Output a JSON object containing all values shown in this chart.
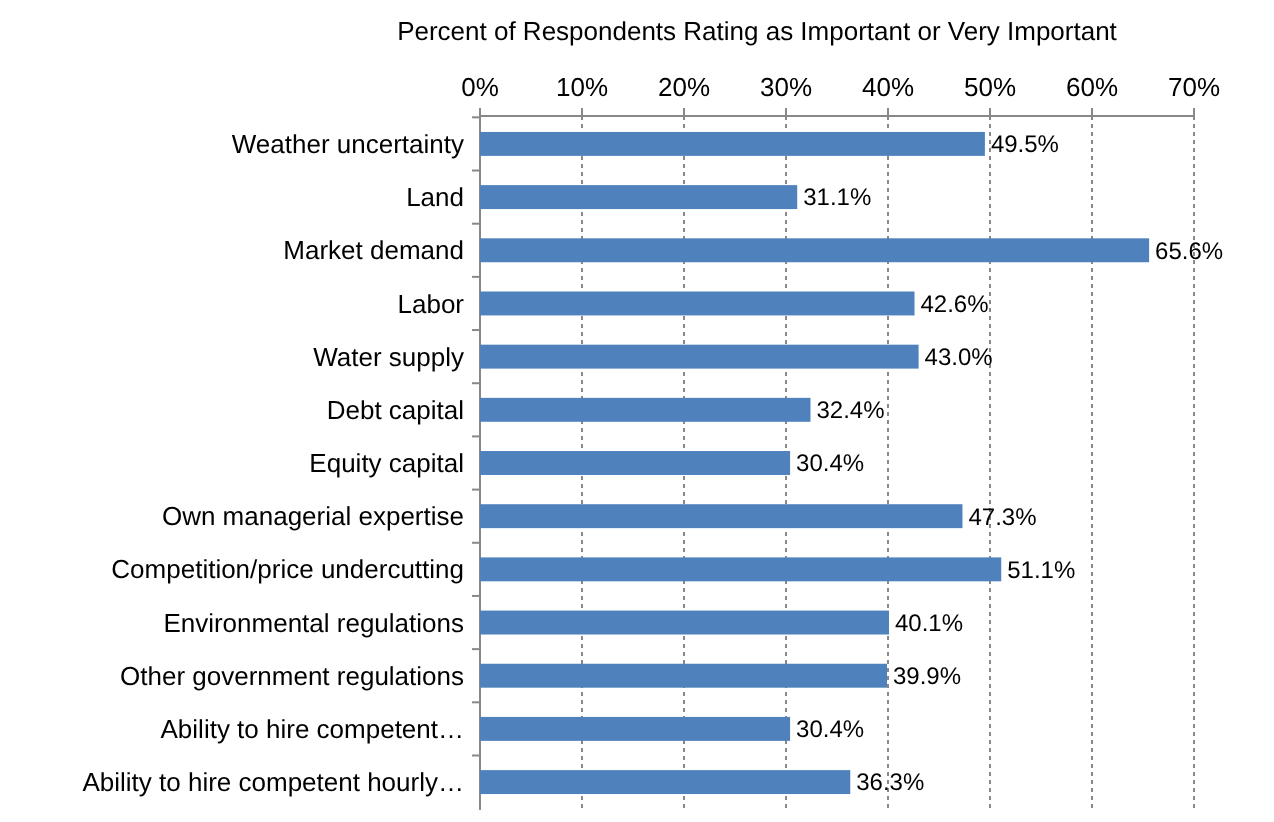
{
  "chart_data": {
    "type": "bar",
    "orientation": "horizontal",
    "title": "Percent of Respondents Rating as Important or Very Important",
    "categories": [
      "Weather uncertainty",
      "Land",
      "Market demand",
      "Labor",
      "Water supply",
      "Debt capital",
      "Equity capital",
      "Own managerial expertise",
      "Competition/price undercutting",
      "Environmental regulations",
      "Other government regulations",
      "Ability to hire competent…",
      "Ability to hire competent hourly…"
    ],
    "values": [
      49.5,
      31.1,
      65.6,
      42.6,
      43.0,
      32.4,
      30.4,
      47.3,
      51.1,
      40.1,
      39.9,
      30.4,
      36.3
    ],
    "value_labels": [
      "49.5%",
      "31.1%",
      "65.6%",
      "42.6%",
      "43.0%",
      "32.4%",
      "30.4%",
      "47.3%",
      "51.1%",
      "40.1%",
      "39.9%",
      "30.4%",
      "36.3%"
    ],
    "color": "#4f81bd",
    "xlim": [
      0,
      70
    ],
    "xticks": [
      {
        "value": 0,
        "label": "0%"
      },
      {
        "value": 10,
        "label": "10%"
      },
      {
        "value": 20,
        "label": "20%"
      },
      {
        "value": 30,
        "label": "30%"
      },
      {
        "value": 40,
        "label": "40%"
      },
      {
        "value": 50,
        "label": "50%"
      },
      {
        "value": 60,
        "label": "60%"
      },
      {
        "value": 70,
        "label": "70%"
      }
    ],
    "grid": "x"
  }
}
